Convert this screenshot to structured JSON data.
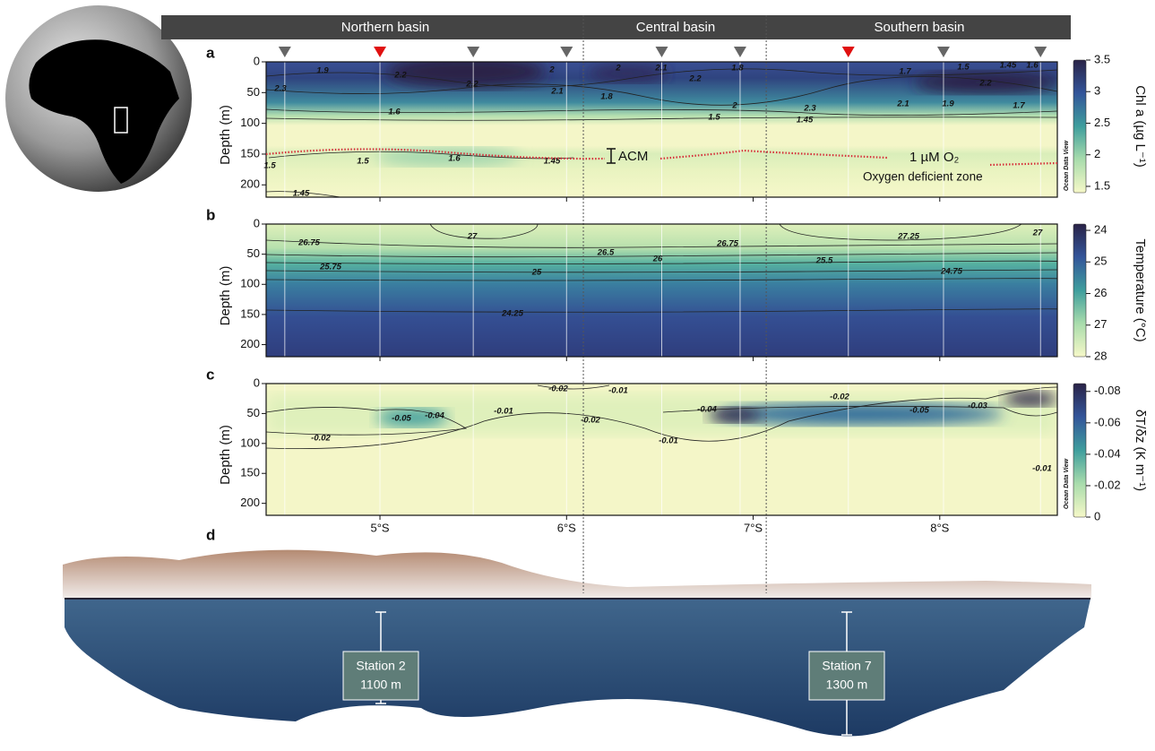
{
  "basins": [
    "Northern basin",
    "Central basin",
    "Southern basin"
  ],
  "basin_boundaries": [
    6.09,
    7.07
  ],
  "xlim": [
    4.39,
    8.63
  ],
  "xticks": [
    {
      "value": 5,
      "label": "5°S"
    },
    {
      "value": 6,
      "label": "6°S"
    },
    {
      "value": 7,
      "label": "7°S"
    },
    {
      "value": 8,
      "label": "8°S"
    }
  ],
  "sampling_stations": [
    {
      "lat": 4.49,
      "highlighted": false
    },
    {
      "lat": 5,
      "highlighted": true
    },
    {
      "lat": 5.5,
      "highlighted": false
    },
    {
      "lat": 6,
      "highlighted": false
    },
    {
      "lat": 6.51,
      "highlighted": false
    },
    {
      "lat": 6.93,
      "highlighted": false
    },
    {
      "lat": 7.51,
      "highlighted": true
    },
    {
      "lat": 8.02,
      "highlighted": false
    },
    {
      "lat": 8.54,
      "highlighted": false
    }
  ],
  "panels": [
    {
      "letter": "a",
      "y_label": "Depth (m)",
      "ylim": [
        0,
        220
      ],
      "yticks": [
        0,
        50,
        100,
        150,
        200
      ],
      "colorbar": {
        "label": "Chl a (µg L⁻¹)",
        "lim": [
          1.4,
          3.5
        ],
        "ticks": [
          1.5,
          2,
          2.5,
          3,
          3.5
        ]
      },
      "contour_labels": [
        1.9,
        2.2,
        2.3,
        2.2,
        2,
        2,
        2.1,
        2.2,
        1.8,
        2.1,
        1.8,
        1.6,
        1.5,
        2,
        2.3,
        1.45,
        2.1,
        1.9,
        1.7,
        1.7,
        1.5,
        1.45,
        2.2,
        1.6,
        1.5,
        1.6,
        1.45,
        1.45,
        1.5
      ],
      "annotations": [
        "ACM",
        "1 µM O₂",
        "Oxygen deficient zone"
      ],
      "watermark": "Ocean Data View"
    },
    {
      "letter": "b",
      "y_label": "Depth (m)",
      "ylim": [
        0,
        220
      ],
      "yticks": [
        0,
        50,
        100,
        150,
        200
      ],
      "colorbar": {
        "label": "Temperature (°C)",
        "lim": [
          28,
          23.8
        ],
        "ticks": [
          24,
          25,
          26,
          27,
          28
        ]
      },
      "contour_labels": [
        26.75,
        27,
        26.5,
        26.75,
        27.25,
        27,
        25.75,
        25,
        26,
        25.5,
        24.75,
        24.25
      ]
    },
    {
      "letter": "c",
      "y_label": "Depth (m)",
      "ylim": [
        0,
        220
      ],
      "yticks": [
        0,
        50,
        100,
        150,
        200
      ],
      "colorbar": {
        "label": "δT/δz (K m⁻¹)",
        "lim": [
          0,
          -0.085
        ],
        "ticks": [
          -0.08,
          -0.06,
          -0.04,
          -0.02,
          0
        ]
      },
      "contour_labels": [
        -0.05,
        -0.04,
        -0.02,
        -0.01,
        -0.02,
        -0.01,
        -0.04,
        -0.02,
        -0.05,
        -0.03,
        -0.01,
        -0.02,
        -0.01
      ],
      "watermark": "Ocean Data View"
    }
  ],
  "section": {
    "letter": "d",
    "stations": [
      {
        "label": "Station 2",
        "depth": "1100 m"
      },
      {
        "label": "Station 7",
        "depth": "1300 m"
      }
    ]
  }
}
